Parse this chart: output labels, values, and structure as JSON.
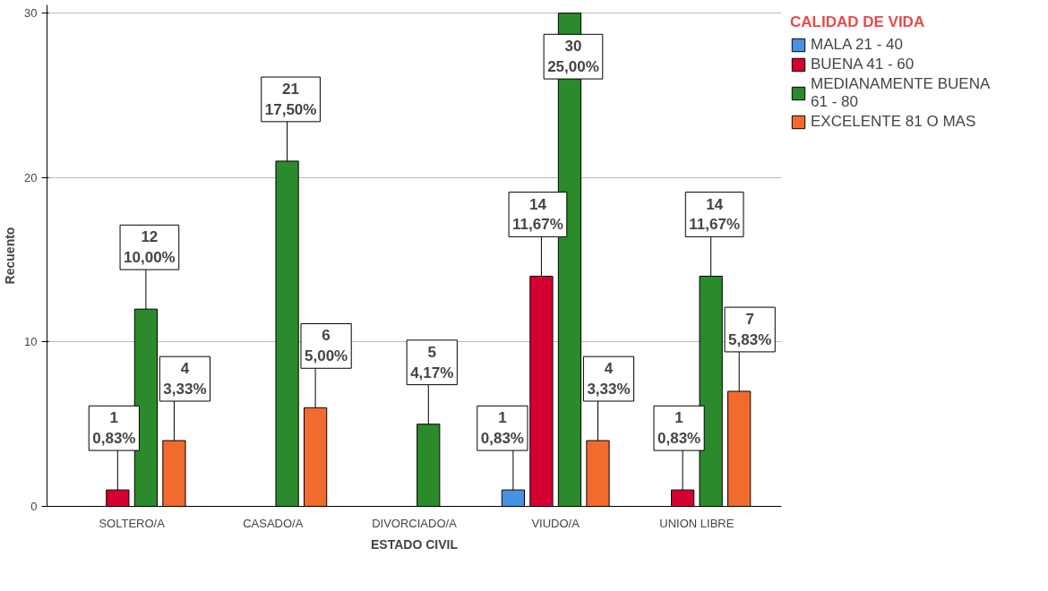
{
  "chart_data": {
    "type": "bar",
    "xlabel": "ESTADO CIVIL",
    "ylabel": "Recuento",
    "legend_title": "CALIDAD DE VIDA",
    "categories": [
      "SOLTERO/A",
      "CASADO/A",
      "DIVORCIADO/A",
      "VIUDO/A",
      "UNION LIBRE"
    ],
    "series": [
      {
        "name": "MALA 21 - 40",
        "color": "#4a90e2",
        "values": [
          null,
          null,
          null,
          1,
          null
        ],
        "value_labels": [
          null,
          null,
          null,
          "1\n0,83%",
          null
        ]
      },
      {
        "name": "BUENA 41 - 60",
        "color": "#d50032",
        "values": [
          1,
          null,
          null,
          14,
          1
        ],
        "value_labels": [
          "1\n0,83%",
          null,
          null,
          "14\n11,67%",
          "1\n0,83%"
        ]
      },
      {
        "name": "MEDIANAMENTE BUENA\n61 - 80",
        "color": "#2b8a2b",
        "values": [
          12,
          21,
          5,
          30,
          14
        ],
        "value_labels": [
          "12\n10,00%",
          "21\n17,50%",
          "5\n4,17%",
          "30\n25,00%",
          "14\n11,67%"
        ]
      },
      {
        "name": "EXCELENTE 81 O MAS",
        "color": "#f26b2e",
        "values": [
          4,
          6,
          null,
          4,
          7
        ],
        "value_labels": [
          "4\n3,33%",
          "6\n5,00%",
          null,
          "4\n3,33%",
          "7\n5,83%"
        ]
      }
    ],
    "ylim": [
      0,
      30.5
    ],
    "yticks": [
      0,
      10,
      20,
      30
    ],
    "grid": "y",
    "legend": "top right"
  }
}
